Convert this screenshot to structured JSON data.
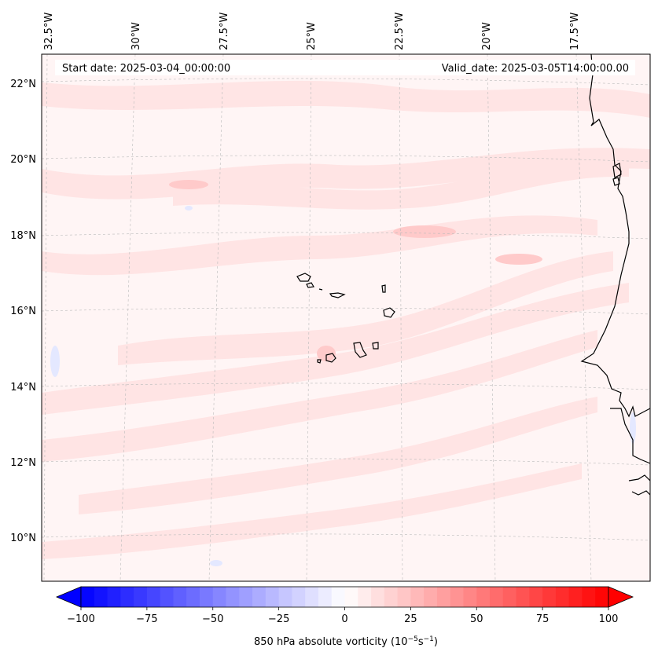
{
  "map": {
    "start_date": "Start date: 2025-03-04_00:00:00",
    "valid_date": "Valid_date: 2025-03-05T14:00:00.00",
    "lon_labels": [
      "32.5°W",
      "30°W",
      "27.5°W",
      "25°W",
      "22.5°W",
      "20°W",
      "17.5°W"
    ],
    "lat_labels": [
      "22°N",
      "20°N",
      "18°N",
      "16°N",
      "14°N",
      "12°N",
      "10°N"
    ],
    "colorbar": {
      "label": "850 hPa absolute vorticity (10",
      "label_exp1": "−5",
      "label_mid": "s",
      "label_exp2": "−1",
      "label_end": ")",
      "ticks": [
        "−100",
        "−75",
        "−50",
        "−25",
        "0",
        "25",
        "50",
        "75",
        "100"
      ],
      "min": -100,
      "max": 100,
      "extend": "both",
      "colormap": "bwr",
      "negative_color": "#0000ff",
      "positive_color": "#ff0000"
    },
    "field_colors": {
      "background": "#fff6f6",
      "weak_positive": "#ffe6e6",
      "positive": "#ffd4d4",
      "weak_negative": "#eef0ff"
    },
    "coastline_color": "#000000",
    "gridlines": "dashed"
  }
}
